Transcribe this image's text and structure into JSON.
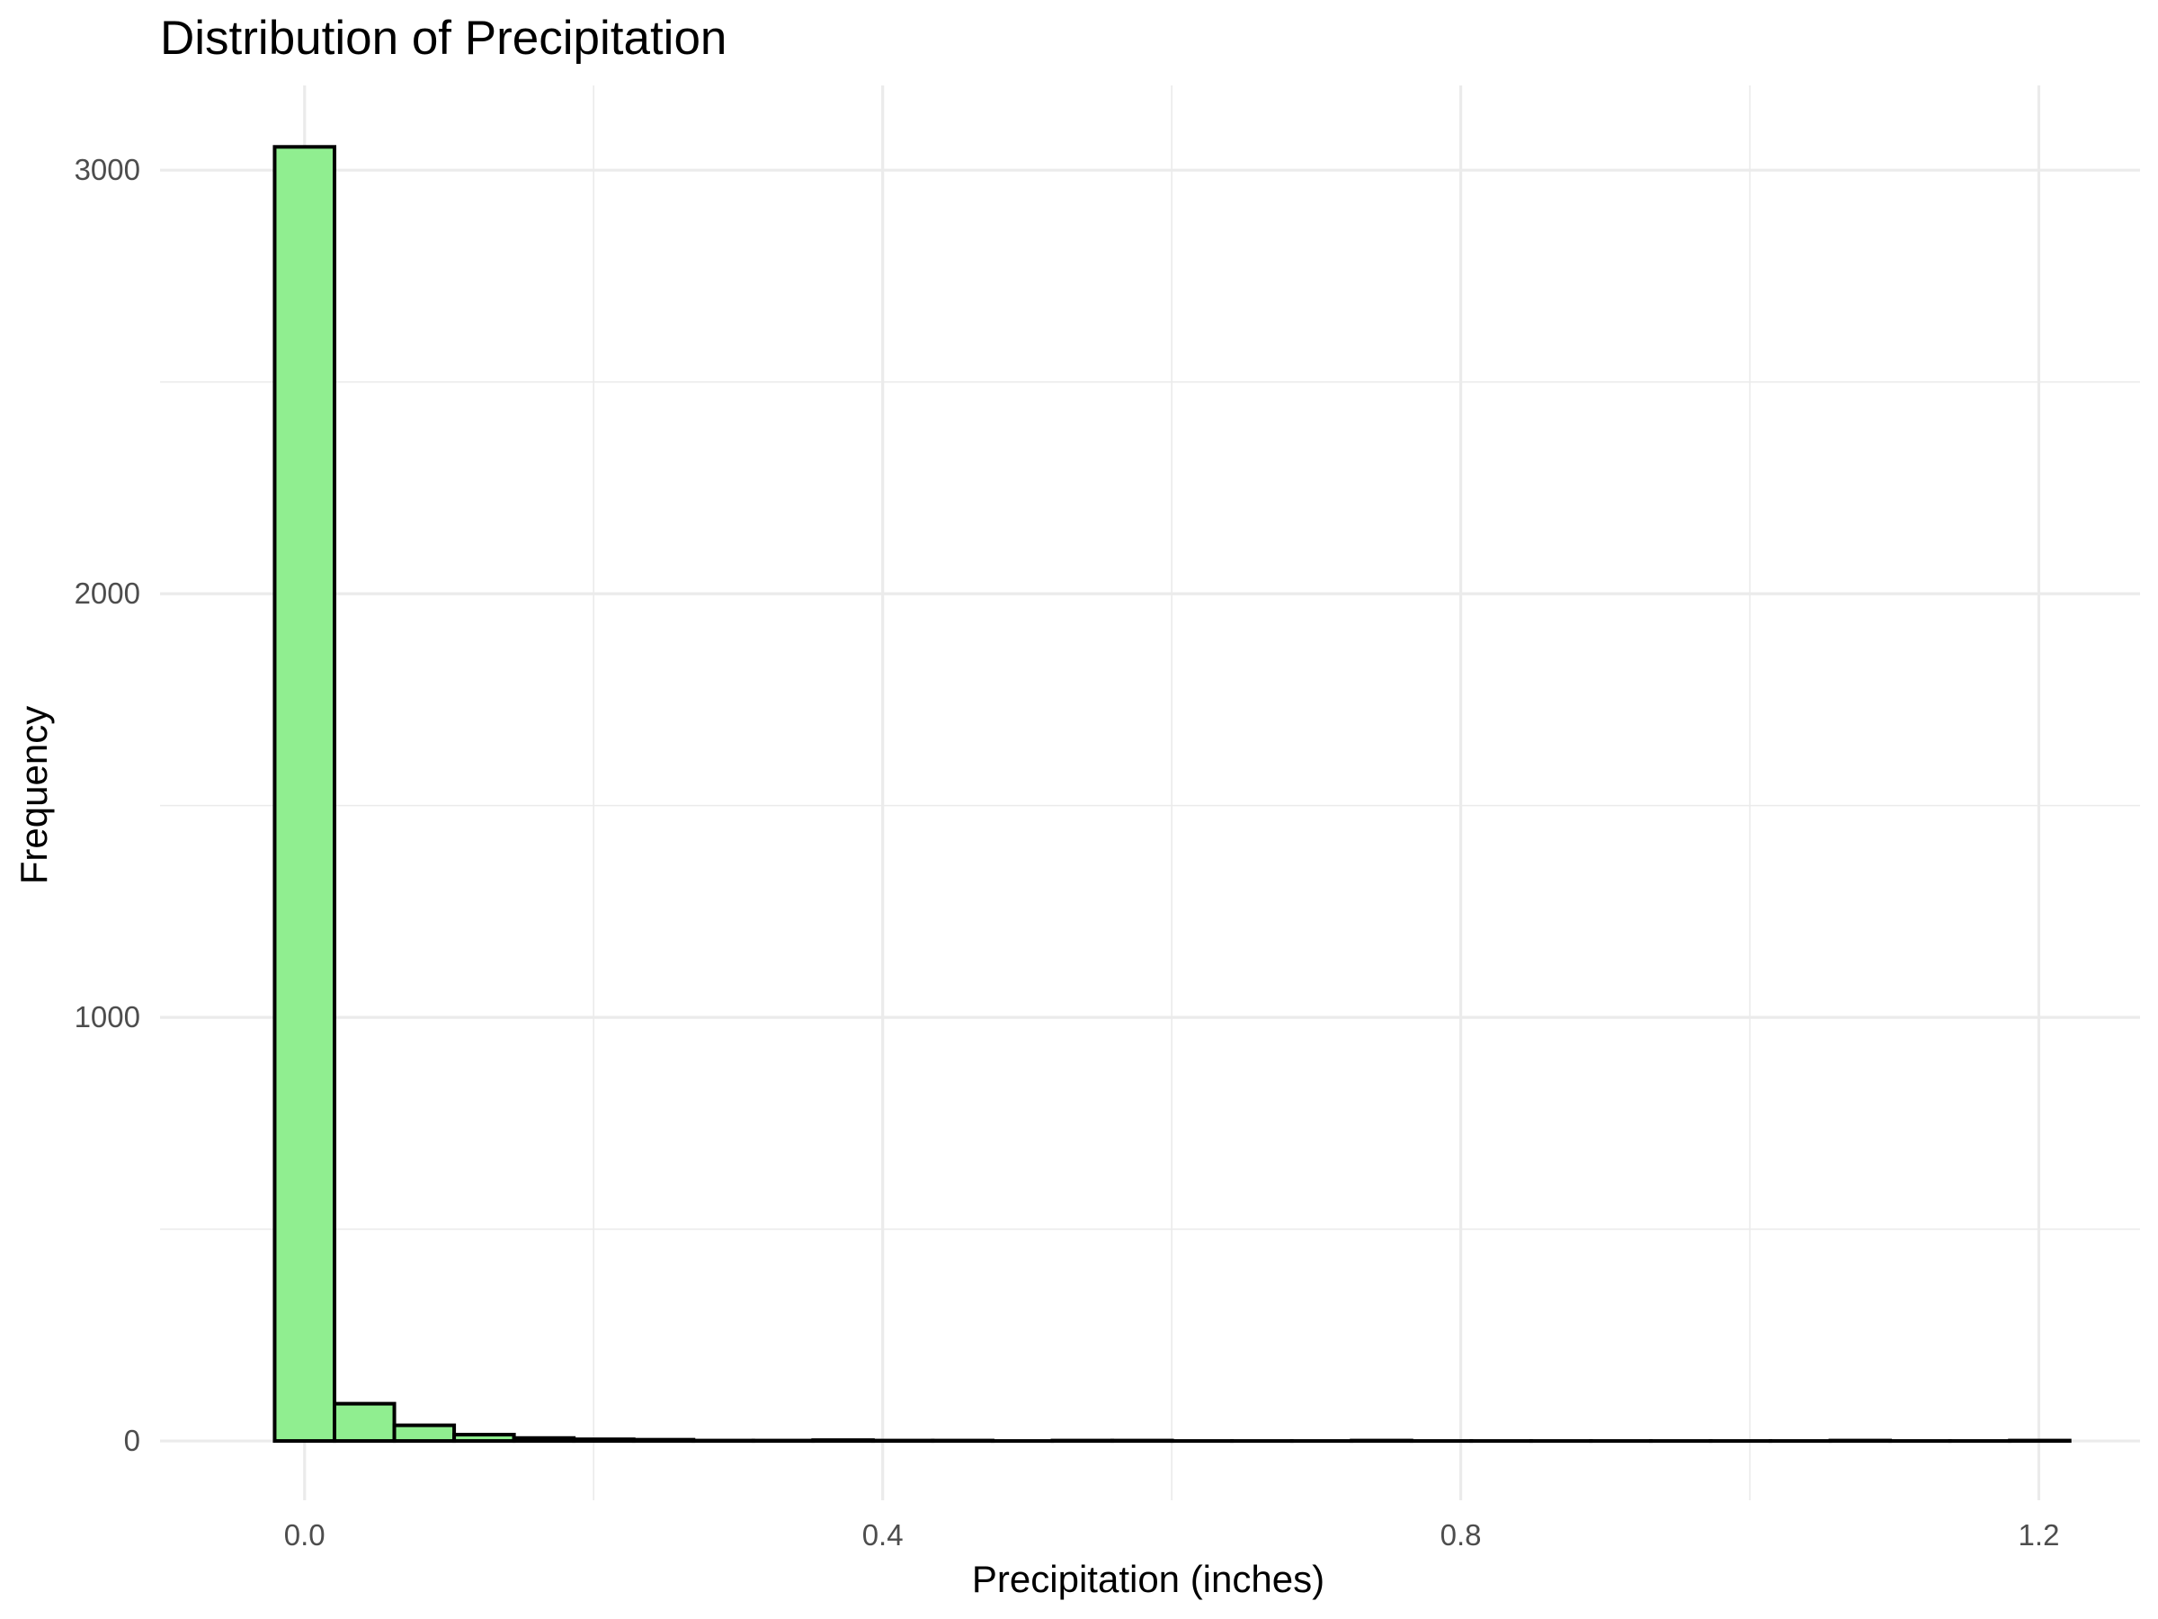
{
  "chart_data": {
    "type": "bar",
    "subtype": "histogram",
    "title": "Distribution of Precipitation",
    "xlabel": "Precipitation (inches)",
    "ylabel": "Frequency",
    "xlim": [
      -0.1,
      1.27
    ],
    "ylim": [
      -140,
      3200
    ],
    "x_ticks": [
      0.0,
      0.4,
      0.8,
      1.2
    ],
    "x_tick_labels": [
      "0.0",
      "0.4",
      "0.8",
      "1.2"
    ],
    "x_minor_ticks": [
      0.2,
      0.6,
      1.0
    ],
    "y_ticks": [
      0,
      1000,
      2000,
      3000
    ],
    "y_tick_labels": [
      "0",
      "1000",
      "2000",
      "3000"
    ],
    "y_minor_ticks": [
      500,
      1500,
      2500
    ],
    "grid": true,
    "legend": "none",
    "fill_color": "#90EE90",
    "edge_color": "#000000",
    "bin_width": 0.0414,
    "bins": [
      {
        "x0": -0.0207,
        "x1": 0.0207,
        "count": 3055
      },
      {
        "x0": 0.0207,
        "x1": 0.0621,
        "count": 88
      },
      {
        "x0": 0.0621,
        "x1": 0.1035,
        "count": 37
      },
      {
        "x0": 0.1035,
        "x1": 0.1449,
        "count": 15
      },
      {
        "x0": 0.1449,
        "x1": 0.1863,
        "count": 7
      },
      {
        "x0": 0.1863,
        "x1": 0.2277,
        "count": 4
      },
      {
        "x0": 0.2277,
        "x1": 0.2691,
        "count": 3
      },
      {
        "x0": 0.2691,
        "x1": 0.3105,
        "count": 1
      },
      {
        "x0": 0.3105,
        "x1": 0.3519,
        "count": 1
      },
      {
        "x0": 0.3519,
        "x1": 0.3933,
        "count": 2
      },
      {
        "x0": 0.3933,
        "x1": 0.4347,
        "count": 1
      },
      {
        "x0": 0.4347,
        "x1": 0.4761,
        "count": 1
      },
      {
        "x0": 0.4761,
        "x1": 0.5175,
        "count": 0
      },
      {
        "x0": 0.5175,
        "x1": 0.5589,
        "count": 1
      },
      {
        "x0": 0.5589,
        "x1": 0.6003,
        "count": 1
      },
      {
        "x0": 0.6003,
        "x1": 0.6417,
        "count": 0
      },
      {
        "x0": 0.6417,
        "x1": 0.6831,
        "count": 0
      },
      {
        "x0": 0.6831,
        "x1": 0.7245,
        "count": 0
      },
      {
        "x0": 0.7245,
        "x1": 0.7659,
        "count": 1
      },
      {
        "x0": 0.7659,
        "x1": 0.8073,
        "count": 0
      },
      {
        "x0": 0.8073,
        "x1": 0.8487,
        "count": 0
      },
      {
        "x0": 0.8487,
        "x1": 0.8901,
        "count": 0
      },
      {
        "x0": 0.8901,
        "x1": 0.9315,
        "count": 0
      },
      {
        "x0": 0.9315,
        "x1": 0.9729,
        "count": 0
      },
      {
        "x0": 0.9729,
        "x1": 1.0143,
        "count": 0
      },
      {
        "x0": 1.0143,
        "x1": 1.0557,
        "count": 0
      },
      {
        "x0": 1.0557,
        "x1": 1.0971,
        "count": 1
      },
      {
        "x0": 1.0971,
        "x1": 1.1385,
        "count": 0
      },
      {
        "x0": 1.1385,
        "x1": 1.1799,
        "count": 0
      },
      {
        "x0": 1.1799,
        "x1": 1.2213,
        "count": 1
      }
    ]
  }
}
